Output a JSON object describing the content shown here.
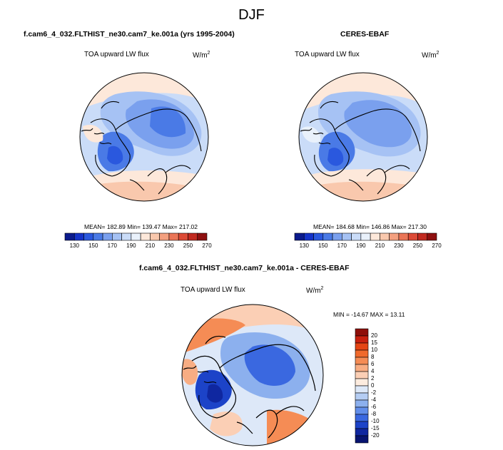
{
  "main_title": "DJF",
  "colors": {
    "coastline": "#000000",
    "map_border": "#000000"
  },
  "panels": [
    {
      "id": "model",
      "title": "f.cam6_4_032.FLTHIST_ne30.cam7_ke.001a (yrs 1995-2004)",
      "variable": "TOA upward LW flux",
      "units_base": "W/m",
      "units_exp": "2",
      "stats": "MEAN= 182.89  Min= 139.47  Max= 217.02"
    },
    {
      "id": "obs",
      "title": "CERES-EBAF",
      "variable": "TOA upward LW flux",
      "units_base": "W/m",
      "units_exp": "2",
      "stats": "MEAN= 184.68  Min= 146.86  Max= 217.30"
    },
    {
      "id": "diff",
      "title": "f.cam6_4_032.FLTHIST_ne30.cam7_ke.001a - CERES-EBAF",
      "variable": "TOA upward LW flux",
      "units_base": "W/m",
      "units_exp": "2",
      "stats": "MIN = -14.67  MAX =  13.11"
    }
  ],
  "chart_data": [
    {
      "type": "heatmap",
      "projection": "north polar stereographic",
      "title": "f.cam6_4_032.FLTHIST_ne30.cam7_ke.001a (yrs 1995-2004)",
      "variable": "TOA upward LW flux",
      "units": "W/m2",
      "mean": 182.89,
      "min": 139.47,
      "max": 217.02,
      "colorbar": {
        "orientation": "horizontal",
        "levels": [
          130,
          140,
          150,
          160,
          170,
          180,
          190,
          200,
          210,
          220,
          230,
          240,
          250,
          260,
          270
        ],
        "tick_labels": [
          "130",
          "150",
          "170",
          "190",
          "210",
          "230",
          "250",
          "270"
        ],
        "colors": [
          "#0b1a8c",
          "#1432c8",
          "#2a58de",
          "#4a7ae6",
          "#7aa0ee",
          "#a6c2f4",
          "#cadcf8",
          "#e9f1fb",
          "#fde8da",
          "#f9c8ad",
          "#f4a07f",
          "#ea7557",
          "#dc4a36",
          "#c22a20",
          "#8e1010"
        ]
      }
    },
    {
      "type": "heatmap",
      "projection": "north polar stereographic",
      "title": "CERES-EBAF",
      "variable": "TOA upward LW flux",
      "units": "W/m2",
      "mean": 184.68,
      "min": 146.86,
      "max": 217.3,
      "colorbar": {
        "orientation": "horizontal",
        "levels": [
          130,
          140,
          150,
          160,
          170,
          180,
          190,
          200,
          210,
          220,
          230,
          240,
          250,
          260,
          270
        ],
        "tick_labels": [
          "130",
          "150",
          "170",
          "190",
          "210",
          "230",
          "250",
          "270"
        ],
        "colors": [
          "#0b1a8c",
          "#1432c8",
          "#2a58de",
          "#4a7ae6",
          "#7aa0ee",
          "#a6c2f4",
          "#cadcf8",
          "#e9f1fb",
          "#fde8da",
          "#f9c8ad",
          "#f4a07f",
          "#ea7557",
          "#dc4a36",
          "#c22a20",
          "#8e1010"
        ]
      }
    },
    {
      "type": "heatmap",
      "projection": "north polar stereographic",
      "title": "f.cam6_4_032.FLTHIST_ne30.cam7_ke.001a - CERES-EBAF",
      "variable": "TOA upward LW flux",
      "units": "W/m2",
      "min": -14.67,
      "max": 13.11,
      "colorbar": {
        "orientation": "vertical",
        "tick_labels": [
          "20",
          "15",
          "10",
          "8",
          "6",
          "4",
          "2",
          "0",
          "-2",
          "-4",
          "-6",
          "-8",
          "-10",
          "-15",
          "-20"
        ],
        "colors": [
          "#8e0f0a",
          "#c8200f",
          "#e54514",
          "#f06a2c",
          "#f58c55",
          "#f8ad83",
          "#fbcfb5",
          "#fdecdf",
          "#dde8f8",
          "#b5cdf3",
          "#8cb0ee",
          "#628eea",
          "#3a68e0",
          "#1c43c8",
          "#0f27a0",
          "#071470"
        ]
      }
    }
  ]
}
